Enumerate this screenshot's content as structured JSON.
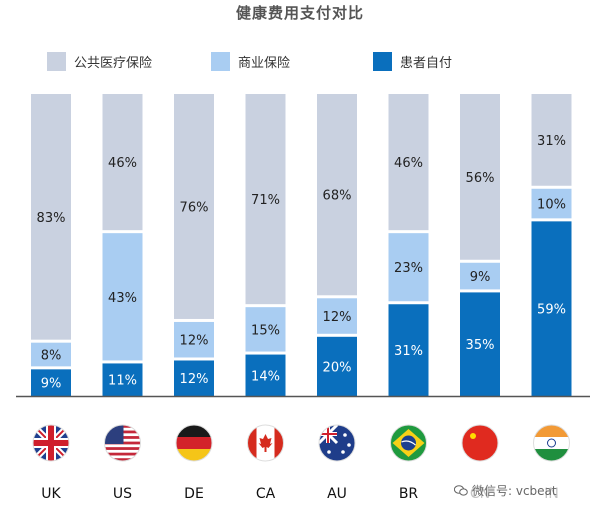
{
  "title": "健康费用支付对比",
  "legend": [
    {
      "label": "公共医疗保险",
      "color": "#c9d1e0"
    },
    {
      "label": "商业保险",
      "color": "#a9cdf2"
    },
    {
      "label": "患者自付",
      "color": "#0a6fbd"
    }
  ],
  "watermark": "微信号: vcbeat",
  "chart_data": {
    "type": "bar",
    "stacked": true,
    "title": "健康费用支付对比",
    "categories": [
      "UK",
      "US",
      "DE",
      "CA",
      "AU",
      "BR",
      "CN",
      "IN"
    ],
    "flag_icons": [
      "uk-flag-icon",
      "us-flag-icon",
      "de-flag-icon",
      "ca-flag-icon",
      "au-flag-icon",
      "br-flag-icon",
      "cn-flag-icon",
      "in-flag-icon"
    ],
    "ylim": [
      0,
      100
    ],
    "series": [
      {
        "name": "患者自付",
        "color": "#0a6fbd",
        "values": [
          9,
          11,
          12,
          14,
          20,
          31,
          35,
          59
        ],
        "labels": [
          "9%",
          "11%",
          "12%",
          "14%",
          "20%",
          "31%",
          "35%",
          "59%"
        ]
      },
      {
        "name": "商业保险",
        "color": "#a9cdf2",
        "values": [
          8,
          43,
          12,
          15,
          12,
          23,
          9,
          10
        ],
        "labels": [
          "8%",
          "43%",
          "12%",
          "15%",
          "12%",
          "23%",
          "9%",
          "10%"
        ]
      },
      {
        "name": "公共医疗保险",
        "color": "#c9d1e0",
        "values": [
          83,
          46,
          76,
          71,
          68,
          46,
          56,
          31
        ],
        "labels": [
          "83%",
          "46%",
          "76%",
          "71%",
          "68%",
          "46%",
          "56%",
          "31%"
        ]
      }
    ]
  }
}
